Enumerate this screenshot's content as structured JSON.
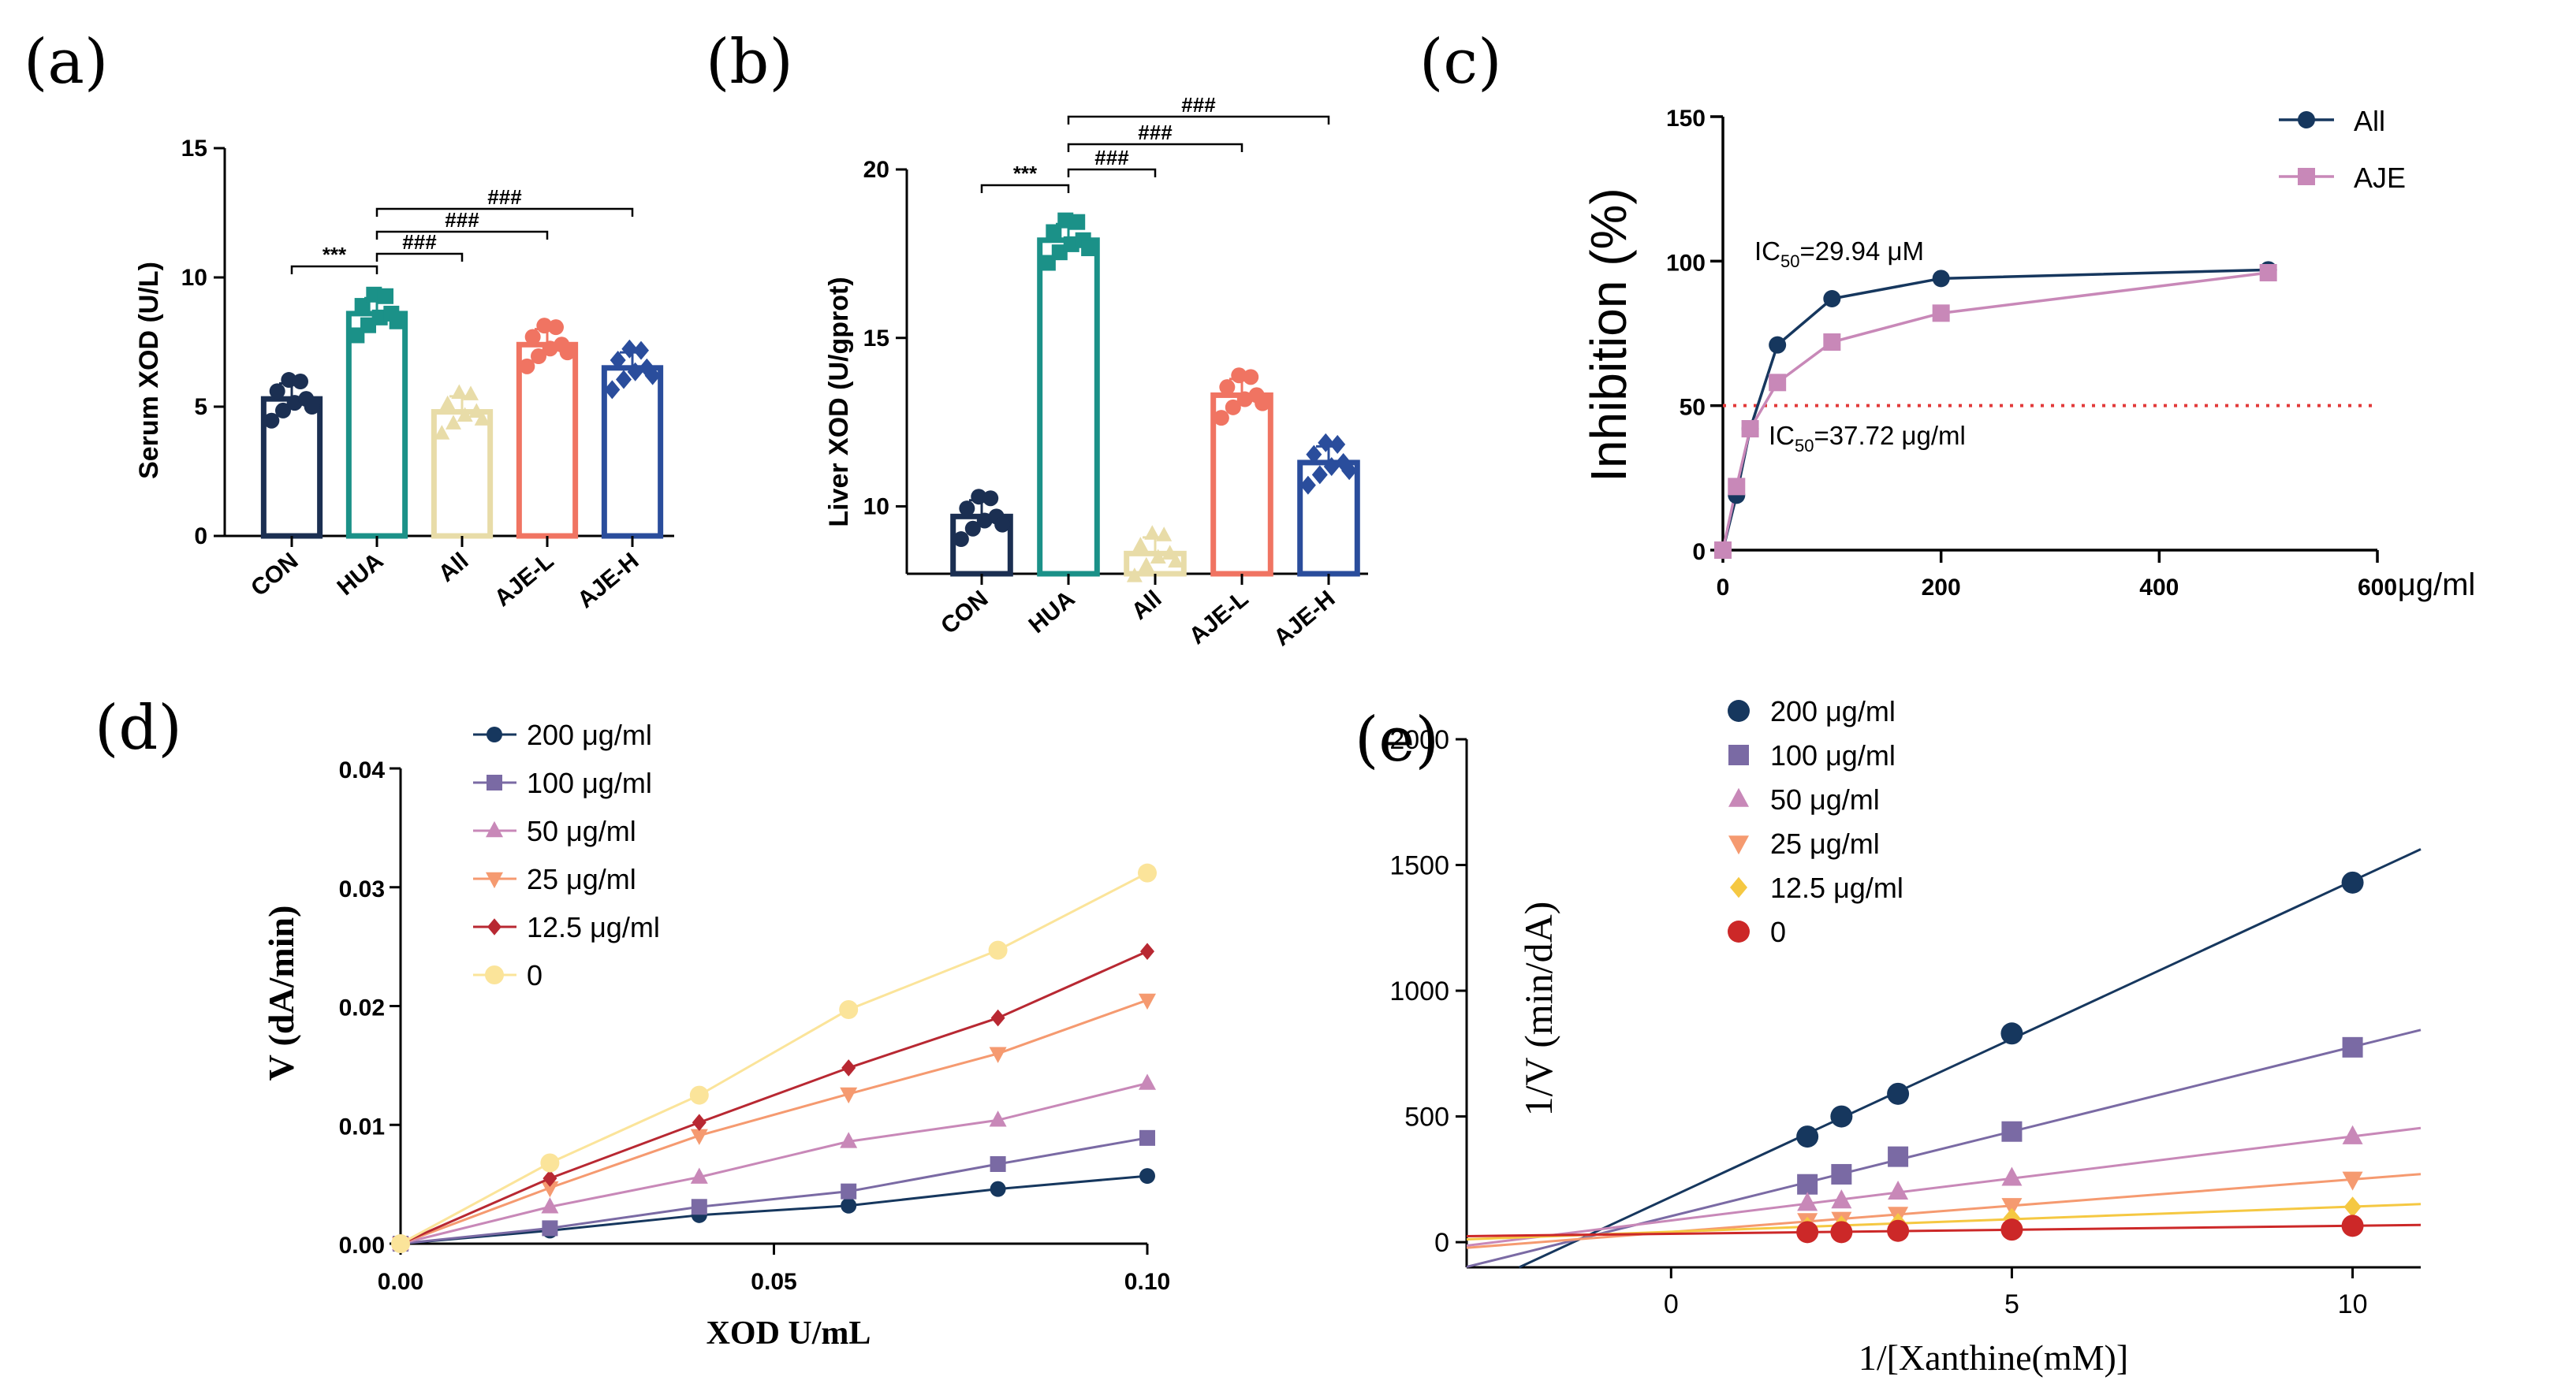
{
  "colors": {
    "CON": "#1b2f52",
    "HUA": "#1b9188",
    "All": "#e8dca8",
    "AJE-L": "#f07462",
    "AJE-H": "#2a4d9c",
    "c_all": "#16375e",
    "c_aje": "#c888b8",
    "dashed": "#e23a3a",
    "d200": "#16375e",
    "d100": "#7a6aa4",
    "d50": "#c888b8",
    "d25": "#f59a70",
    "d12": "#b82832",
    "d0": "#fbe49a",
    "e12": "#f5c842",
    "e0": "#cc2828"
  },
  "chart_data": [
    {
      "id": "a",
      "panel_label": "(a)",
      "type": "bar",
      "ylabel": "Serum XOD (U/L)",
      "ylim": [
        0,
        15
      ],
      "yticks": [
        "0",
        "5",
        "10",
        "15"
      ],
      "categories": [
        "CON",
        "HUA",
        "All",
        "AJE-L",
        "AJE-H"
      ],
      "values": [
        5.3,
        8.6,
        4.8,
        7.4,
        6.5
      ],
      "sig": [
        {
          "from": 0,
          "to": 1,
          "label": "***"
        },
        {
          "from": 1,
          "to": 2,
          "label": "###"
        },
        {
          "from": 1,
          "to": 3,
          "label": "###"
        },
        {
          "from": 1,
          "to": 4,
          "label": "###"
        }
      ]
    },
    {
      "id": "b",
      "panel_label": "(b)",
      "type": "bar",
      "ylabel": "Liver XOD (U/gprot)",
      "ylim": [
        8,
        20
      ],
      "yticks": [
        "10",
        "15",
        "20"
      ],
      "categories": [
        "CON",
        "HUA",
        "All",
        "AJE-L",
        "AJE-H"
      ],
      "values": [
        9.7,
        17.9,
        8.6,
        13.3,
        11.3
      ],
      "sig": [
        {
          "from": 0,
          "to": 1,
          "label": "***"
        },
        {
          "from": 1,
          "to": 2,
          "label": "###"
        },
        {
          "from": 1,
          "to": 3,
          "label": "###"
        },
        {
          "from": 1,
          "to": 4,
          "label": "###"
        }
      ]
    },
    {
      "id": "c",
      "panel_label": "(c)",
      "type": "line",
      "ylabel": "Inhibition (%)",
      "xunit": "μg/ml",
      "xlim": [
        0,
        600
      ],
      "ylim": [
        0,
        150
      ],
      "xticks": [
        "0",
        "200",
        "400",
        "600"
      ],
      "yticks": [
        "0",
        "50",
        "100",
        "150"
      ],
      "series": [
        {
          "name": "All",
          "x": [
            0,
            12.5,
            25,
            50,
            100,
            200,
            500
          ],
          "y": [
            0,
            19,
            42,
            71,
            87,
            94,
            97
          ]
        },
        {
          "name": "AJE",
          "x": [
            0,
            12.5,
            25,
            50,
            100,
            200,
            500
          ],
          "y": [
            0,
            22,
            42,
            58,
            72,
            82,
            96
          ]
        }
      ],
      "reference_y": 50,
      "annot_all": {
        "prefix": "IC",
        "sub": "50",
        "value": "=29.94 μM"
      },
      "annot_aje": {
        "prefix": "IC",
        "sub": "50",
        "value": "=37.72 μg/ml"
      }
    },
    {
      "id": "d",
      "panel_label": "(d)",
      "type": "line",
      "xlabel": "XOD U/mL",
      "ylabel": "V (dA/min)",
      "xlim": [
        0,
        0.1
      ],
      "ylim": [
        0,
        0.04
      ],
      "xticks": [
        "0.00",
        "0.05",
        "0.10"
      ],
      "yticks": [
        "0.00",
        "0.01",
        "0.02",
        "0.03",
        "0.04"
      ],
      "x": [
        0,
        0.02,
        0.04,
        0.06,
        0.08,
        0.1
      ],
      "series": [
        {
          "name": "200 μg/ml",
          "y": [
            0,
            0.0011,
            0.0024,
            0.0032,
            0.0046,
            0.0057
          ]
        },
        {
          "name": "100 μg/ml",
          "y": [
            0,
            0.0013,
            0.0031,
            0.0044,
            0.0067,
            0.0089
          ]
        },
        {
          "name": "50 μg/ml",
          "y": [
            0,
            0.0031,
            0.0056,
            0.0086,
            0.0104,
            0.0135
          ]
        },
        {
          "name": "25 μg/ml",
          "y": [
            0,
            0.0047,
            0.0091,
            0.0126,
            0.016,
            0.0205
          ]
        },
        {
          "name": "12.5 μg/ml",
          "y": [
            0,
            0.0055,
            0.0102,
            0.0148,
            0.019,
            0.0246
          ]
        },
        {
          "name": "0",
          "y": [
            0,
            0.0068,
            0.0125,
            0.0197,
            0.0247,
            0.0312
          ]
        }
      ]
    },
    {
      "id": "e",
      "panel_label": "(e)",
      "type": "scatter",
      "xlabel": "1/[Xanthine(mM)]",
      "ylabel": "1/V (min/dA)",
      "xlim": [
        -3,
        11
      ],
      "ylim": [
        -100,
        2000
      ],
      "xticks": [
        "0",
        "5",
        "10"
      ],
      "yticks": [
        "0",
        "500",
        "1000",
        "1500",
        "2000"
      ],
      "x": [
        2,
        2.5,
        3.33,
        5,
        10
      ],
      "series": [
        {
          "name": "200 μg/ml",
          "y": [
            420,
            500,
            590,
            830,
            1430
          ]
        },
        {
          "name": "100 μg/ml",
          "y": [
            230,
            270,
            340,
            440,
            775
          ]
        },
        {
          "name": "50 μg/ml",
          "y": [
            155,
            165,
            200,
            255,
            420
          ]
        },
        {
          "name": "25 μg/ml",
          "y": [
            85,
            90,
            110,
            145,
            250
          ]
        },
        {
          "name": "12.5 μg/ml",
          "y": [
            60,
            65,
            75,
            95,
            140
          ]
        },
        {
          "name": "0",
          "y": [
            40,
            40,
            45,
            50,
            65
          ]
        }
      ]
    }
  ]
}
